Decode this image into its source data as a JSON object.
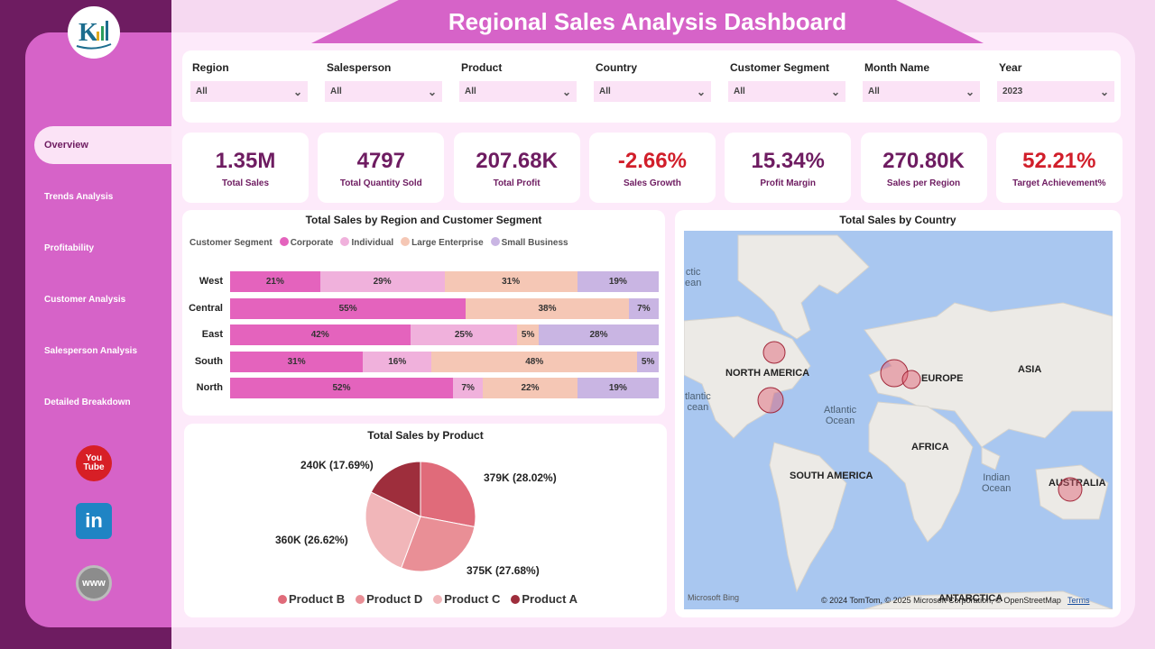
{
  "header": {
    "title": "Regional Sales Analysis Dashboard"
  },
  "nav": {
    "items": [
      {
        "label": "Overview"
      },
      {
        "label": "Trends Analysis"
      },
      {
        "label": "Profitability"
      },
      {
        "label": "Customer Analysis"
      },
      {
        "label": "Salesperson Analysis"
      },
      {
        "label": "Detailed Breakdown"
      }
    ]
  },
  "social": {
    "youtube": "You\nTube",
    "linkedin": "in",
    "web": "www"
  },
  "filters": [
    {
      "label": "Region",
      "value": "All"
    },
    {
      "label": "Salesperson",
      "value": "All"
    },
    {
      "label": "Product",
      "value": "All"
    },
    {
      "label": "Country",
      "value": "All"
    },
    {
      "label": "Customer Segment",
      "value": "All"
    },
    {
      "label": "Month Name",
      "value": "All"
    },
    {
      "label": "Year",
      "value": "2023"
    }
  ],
  "kpis": [
    {
      "value": "1.35M",
      "label": "Total Sales"
    },
    {
      "value": "4797",
      "label": "Total Quantity Sold"
    },
    {
      "value": "207.68K",
      "label": "Total Profit"
    },
    {
      "value": "-2.66%",
      "label": "Sales Growth"
    },
    {
      "value": "15.34%",
      "label": "Profit Margin"
    },
    {
      "value": "270.80K",
      "label": "Sales per Region"
    },
    {
      "value": "52.21%",
      "label": "Target Achievement%"
    }
  ],
  "colors": {
    "corporate": "#e463bd",
    "individual": "#f0b1dc",
    "large_enterprise": "#f5c7b5",
    "small_business": "#c9b5e3",
    "negative": "#d11e2a",
    "kpi": "#6e1c61"
  },
  "region_chart": {
    "title": "Total Sales by Region and Customer Segment",
    "legend_title": "Customer Segment",
    "segments": [
      "Corporate",
      "Individual",
      "Large Enterprise",
      "Small Business"
    ],
    "rows": [
      {
        "region": "West",
        "values": [
          21,
          29,
          31,
          19
        ],
        "labels": [
          "21%",
          "29%",
          "31%",
          "19%"
        ]
      },
      {
        "region": "Central",
        "values": [
          55,
          0,
          38,
          7
        ],
        "labels": [
          "55%",
          "",
          "38%",
          "7%"
        ]
      },
      {
        "region": "East",
        "values": [
          42,
          25,
          5,
          28
        ],
        "labels": [
          "42%",
          "25%",
          "5%",
          "28%"
        ]
      },
      {
        "region": "South",
        "values": [
          31,
          16,
          48,
          5
        ],
        "labels": [
          "31%",
          "16%",
          "48%",
          "5%"
        ]
      },
      {
        "region": "North",
        "values": [
          52,
          7,
          22,
          19
        ],
        "labels": [
          "52%",
          "7%",
          "22%",
          "19%"
        ]
      }
    ]
  },
  "pie_chart": {
    "title": "Total Sales by Product",
    "slices": [
      {
        "name": "Product B",
        "label": "379K (28.02%)",
        "value": 28.02,
        "color": "#e06b7a"
      },
      {
        "name": "Product D",
        "label": "375K (27.68%)",
        "value": 27.68,
        "color": "#e98f96"
      },
      {
        "name": "Product C",
        "label": "360K (26.62%)",
        "value": 26.62,
        "color": "#f1b6b9"
      },
      {
        "name": "Product A",
        "label": "240K (17.69%)",
        "value": 17.69,
        "color": "#9e2e3c"
      }
    ]
  },
  "map": {
    "title": "Total Sales by Country",
    "continents": [
      "NORTH AMERICA",
      "EUROPE",
      "ASIA",
      "AFRICA",
      "SOUTH AMERICA",
      "AUSTRALIA",
      "ANTARCTICA"
    ],
    "oceans": [
      "Atlantic\nOcean",
      "Indian\nOcean",
      "ctic\nean",
      "tlantic\ncean"
    ],
    "attribution": "© 2024 TomTom, © 2025 Microsoft Corporation, © OpenStreetMap",
    "terms": "Terms",
    "bing": "Microsoft Bing"
  }
}
